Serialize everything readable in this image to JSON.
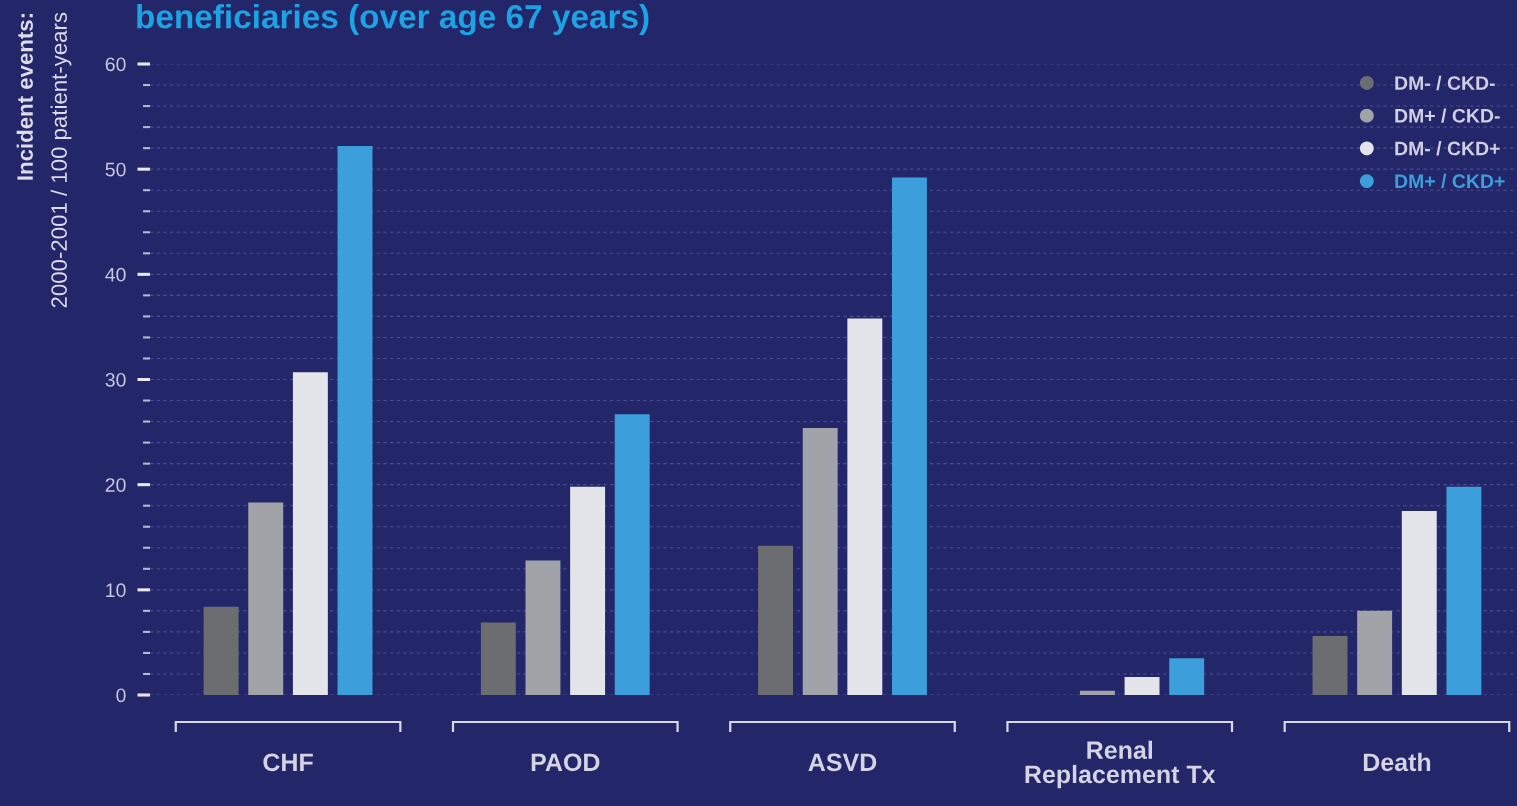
{
  "chart_data": {
    "type": "bar",
    "title": "beneficiaries (over age 67 years)",
    "ylabel": "Incident events:\n2000-2001 / 100 patient-years",
    "categories": [
      "CHF",
      "PAOD",
      "ASVD",
      "Renal\nReplacement Tx",
      "Death"
    ],
    "series": [
      {
        "name": "DM- / CKD-",
        "color": "#6c6d71",
        "values": [
          8.4,
          6.9,
          14.2,
          null,
          5.6
        ]
      },
      {
        "name": "DM+ / CKD-",
        "color": "#a2a3a8",
        "values": [
          18.3,
          12.8,
          25.4,
          0.4,
          8.0
        ]
      },
      {
        "name": "DM- / CKD+",
        "color": "#e4e5ea",
        "values": [
          30.7,
          19.8,
          35.8,
          1.7,
          17.5
        ]
      },
      {
        "name": "DM+ / CKD+",
        "color": "#3c9edb",
        "values": [
          52.2,
          26.7,
          49.2,
          3.5,
          19.8
        ]
      }
    ],
    "ylim": [
      0,
      60
    ],
    "yticks": [
      0,
      {
        "value": 2,
        "label": null
      },
      {
        "value": 4,
        "label": null
      },
      {
        "value": 6,
        "label": null
      },
      {
        "value": 8,
        "label": null
      },
      10,
      {
        "value": 12,
        "label": null
      },
      {
        "value": 14,
        "label": null
      },
      {
        "value": 16,
        "label": null
      },
      {
        "value": 18,
        "label": null
      },
      20,
      {
        "value": 22,
        "label": null
      },
      {
        "value": 24,
        "label": null
      },
      {
        "value": 26,
        "label": null
      },
      {
        "value": 28,
        "label": null
      },
      30,
      {
        "value": 32,
        "label": null
      },
      {
        "value": 34,
        "label": null
      },
      {
        "value": 36,
        "label": null
      },
      {
        "value": 38,
        "label": null
      },
      40,
      {
        "value": 42,
        "label": null
      },
      {
        "value": 44,
        "label": null
      },
      {
        "value": 46,
        "label": null
      },
      {
        "value": 48,
        "label": null
      },
      50,
      {
        "value": 52,
        "label": null
      },
      {
        "value": 54,
        "label": null
      },
      {
        "value": 56,
        "label": null
      },
      {
        "value": 58,
        "label": null
      },
      60
    ],
    "grid": "y",
    "legend": "top right"
  }
}
